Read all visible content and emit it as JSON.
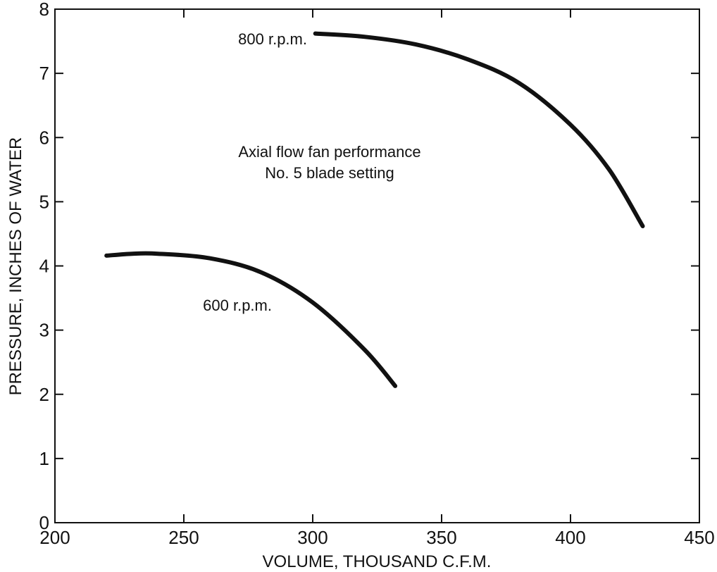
{
  "chart_data": {
    "type": "line",
    "title": "",
    "annotation": [
      "Axial flow fan performance",
      "No. 5 blade setting"
    ],
    "xlabel": "VOLUME, THOUSAND C.F.M.",
    "ylabel": "PRESSURE, INCHES OF WATER",
    "xlim": [
      200,
      450
    ],
    "ylim": [
      0,
      8
    ],
    "xticks": [
      200,
      250,
      300,
      350,
      400,
      450
    ],
    "yticks": [
      0,
      1,
      2,
      3,
      4,
      5,
      6,
      7,
      8
    ],
    "grid": false,
    "legend": "none",
    "series": [
      {
        "name": "800 r.p.m.",
        "color": "#111111",
        "x": [
          301,
          320,
          340,
          360,
          380,
          400,
          415,
          428
        ],
        "y": [
          7.62,
          7.57,
          7.45,
          7.22,
          6.85,
          6.2,
          5.5,
          4.62
        ]
      },
      {
        "name": "600 r.p.m.",
        "color": "#111111",
        "x": [
          220,
          230,
          240,
          260,
          280,
          300,
          320,
          332
        ],
        "y": [
          4.16,
          4.19,
          4.19,
          4.12,
          3.9,
          3.43,
          2.7,
          2.13
        ]
      }
    ]
  }
}
